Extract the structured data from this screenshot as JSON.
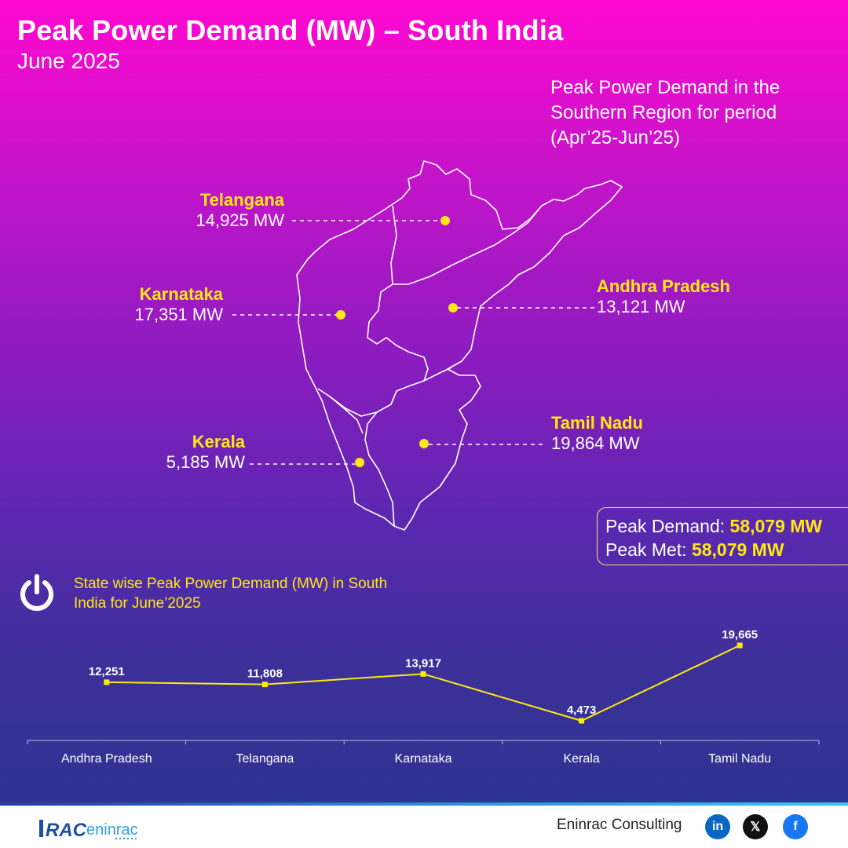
{
  "header": {
    "title": "Peak Power Demand (MW) – South India",
    "subtitle": "June 2025"
  },
  "map": {
    "note": "Peak Power Demand in the Southern Region for period (Apr’25-Jun’25)",
    "states": [
      {
        "name": "Telangana",
        "value": "14,925 MW"
      },
      {
        "name": "Karnataka",
        "value": "17,351 MW"
      },
      {
        "name": "Andhra Pradesh",
        "value": "13,121 MW"
      },
      {
        "name": "Kerala",
        "value": "5,185 MW"
      },
      {
        "name": "Tamil Nadu",
        "value": "19,864 MW"
      }
    ],
    "dot_color": "#ffe815"
  },
  "summary": {
    "demand_label": "Peak Demand:",
    "demand_value": "58,079 MW",
    "met_label": "Peak Met:",
    "met_value": "58,079 MW"
  },
  "chart_heading": "State wise Peak Power Demand (MW) in South India for June’2025",
  "chart_data": {
    "type": "line",
    "title": "State wise Peak Power Demand (MW) in South India for June’2025",
    "categories": [
      "Andhra Pradesh",
      "Telangana",
      "Karnataka",
      "Kerala",
      "Tamil Nadu"
    ],
    "values": [
      12251,
      11808,
      13917,
      4473,
      19665
    ],
    "value_labels": [
      "12,251",
      "11,808",
      "13,917",
      "4,473",
      "19,665"
    ],
    "line_color": "#ffe815",
    "grid": false
  },
  "footer": {
    "brand_text": "RAC eninrac",
    "company": "Eninrac Consulting",
    "social": [
      {
        "icon": "linkedin-icon",
        "glyph": "in",
        "color": "#0a66c2"
      },
      {
        "icon": "x-icon",
        "glyph": "𝕏",
        "color": "#111111"
      },
      {
        "icon": "facebook-icon",
        "glyph": "f",
        "color": "#1877f2"
      }
    ]
  }
}
